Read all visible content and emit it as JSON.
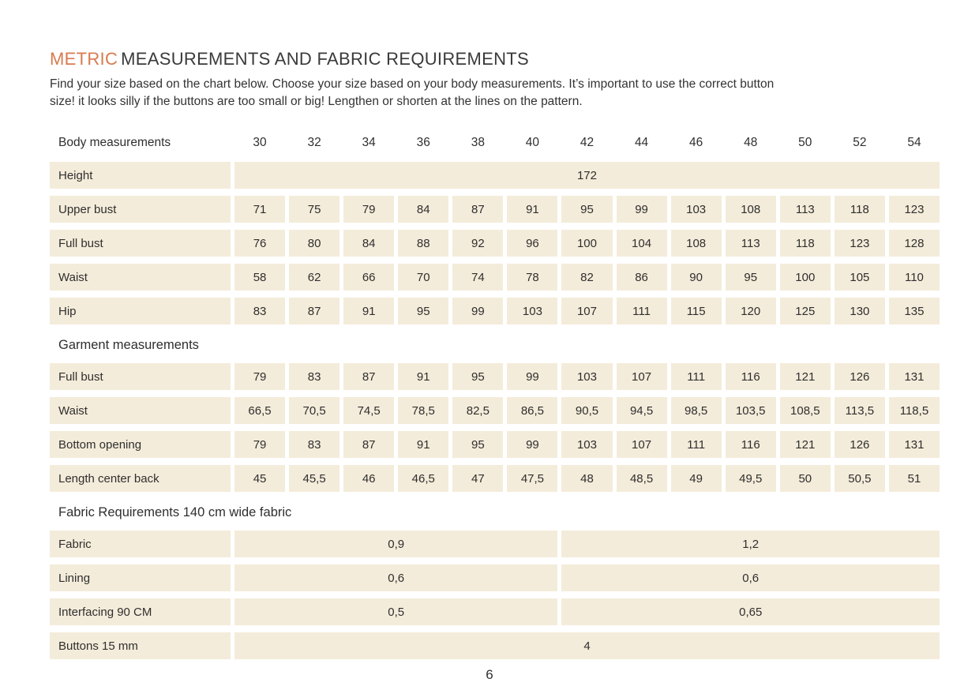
{
  "colors": {
    "accent": "#D87B4E",
    "cellBg": "#F4ECDA",
    "text": "#303030"
  },
  "header": {
    "title_accent": "METRIC",
    "title_rest": "MEASUREMENTS AND FABRIC REQUIREMENTS",
    "intro_line1": "Find your size based on the chart below. Choose your size based on your body measurements.  It’s important to use the correct button",
    "intro_line2": "size! it looks silly if the buttons are too small or big! Lengthen or shorten at the lines on the pattern."
  },
  "table": {
    "header_label": "Body measurements",
    "sizes": [
      "30",
      "32",
      "34",
      "36",
      "38",
      "40",
      "42",
      "44",
      "46",
      "48",
      "50",
      "52",
      "54"
    ],
    "height": {
      "label": "Height",
      "value": "172"
    },
    "body_rows": [
      {
        "label": "Upper bust",
        "values": [
          "71",
          "75",
          "79",
          "84",
          "87",
          "91",
          "95",
          "99",
          "103",
          "108",
          "113",
          "118",
          "123"
        ]
      },
      {
        "label": "Full bust",
        "values": [
          "76",
          "80",
          "84",
          "88",
          "92",
          "96",
          "100",
          "104",
          "108",
          "113",
          "118",
          "123",
          "128"
        ]
      },
      {
        "label": "Waist",
        "values": [
          "58",
          "62",
          "66",
          "70",
          "74",
          "78",
          "82",
          "86",
          "90",
          "95",
          "100",
          "105",
          "110"
        ]
      },
      {
        "label": "Hip",
        "values": [
          "83",
          "87",
          "91",
          "95",
          "99",
          "103",
          "107",
          "111",
          "115",
          "120",
          "125",
          "130",
          "135"
        ]
      }
    ],
    "garment_section_label": "Garment measurements",
    "garment_rows": [
      {
        "label": "Full bust",
        "values": [
          "79",
          "83",
          "87",
          "91",
          "95",
          "99",
          "103",
          "107",
          "111",
          "116",
          "121",
          "126",
          "131"
        ]
      },
      {
        "label": "Waist",
        "values": [
          "66,5",
          "70,5",
          "74,5",
          "78,5",
          "82,5",
          "86,5",
          "90,5",
          "94,5",
          "98,5",
          "103,5",
          "108,5",
          "113,5",
          "118,5"
        ]
      },
      {
        "label": "Bottom opening",
        "values": [
          "79",
          "83",
          "87",
          "91",
          "95",
          "99",
          "103",
          "107",
          "111",
          "116",
          "121",
          "126",
          "131"
        ]
      },
      {
        "label": "Length center back",
        "values": [
          "45",
          "45,5",
          "46",
          "46,5",
          "47",
          "47,5",
          "48",
          "48,5",
          "49",
          "49,5",
          "50",
          "50,5",
          "51"
        ]
      }
    ],
    "fabric_section_label": "Fabric Requirements 140 cm wide fabric",
    "fabric_rows": [
      {
        "label": "Fabric",
        "left": "0,9",
        "right": "1,2"
      },
      {
        "label": "Lining",
        "left": "0,6",
        "right": "0,6"
      },
      {
        "label": "Interfacing  90 CM",
        "left": "0,5",
        "right": "0,65"
      }
    ],
    "buttons_row": {
      "label": "Buttons 15 mm",
      "value": "4"
    }
  },
  "footer": {
    "page_number": "6"
  }
}
